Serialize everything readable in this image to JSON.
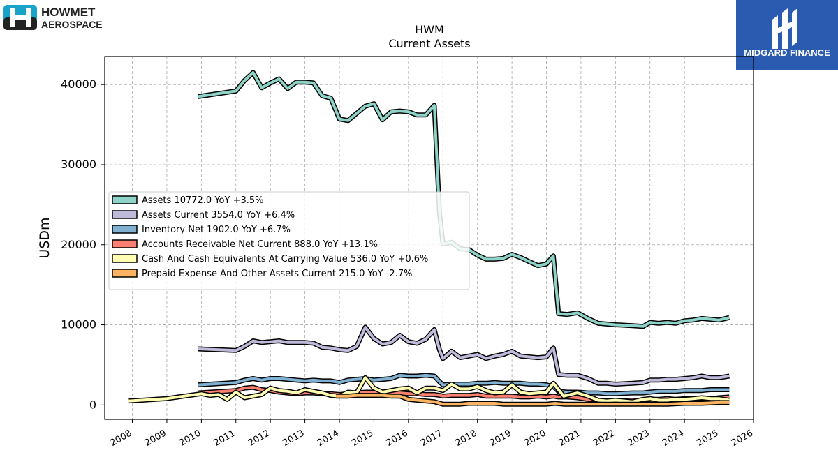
{
  "brand": {
    "left_line1": "HOWMET",
    "left_line2": "AEROSPACE",
    "right_text": "MIDGARD FINANCE"
  },
  "colors": {
    "assets": "#8dd3c7",
    "assets_current": "#bebada",
    "inventory": "#80b1d3",
    "receivable": "#fb8072",
    "cash": "#ffffb3",
    "prepaid": "#fdb462",
    "brand_blue": "#2a5bb0",
    "logo_teal": "#1aa3c8"
  },
  "chart_data": {
    "type": "line",
    "title": "HWM",
    "subtitle": "Current  Assets",
    "xlabel": "",
    "ylabel": "USDm",
    "xlim": [
      2007.2,
      2026.0
    ],
    "ylim": [
      -1800,
      43500
    ],
    "x_ticks": [
      "2008",
      "2009",
      "2010",
      "2011",
      "2012",
      "2013",
      "2014",
      "2015",
      "2016",
      "2017",
      "2018",
      "2019",
      "2020",
      "2021",
      "2022",
      "2023",
      "2024",
      "2025",
      "2026"
    ],
    "y_ticks": [
      0,
      10000,
      20000,
      30000,
      40000
    ],
    "y_tick_labels": [
      "0",
      "10000",
      "20000",
      "30000",
      "40000"
    ],
    "grid": true,
    "legend_position": "center-left",
    "series": [
      {
        "name": "Assets  10772.0 YoY +3.5%",
        "color": "#8dd3c7",
        "x": [
          2009.9,
          2011.0,
          2011.25,
          2011.5,
          2011.75,
          2012.0,
          2012.25,
          2012.5,
          2012.75,
          2013.0,
          2013.25,
          2013.5,
          2013.75,
          2014.0,
          2014.25,
          2014.5,
          2014.75,
          2015.0,
          2015.25,
          2015.5,
          2015.75,
          2016.0,
          2016.25,
          2016.5,
          2016.75,
          2016.9,
          2017.0,
          2017.25,
          2017.5,
          2017.75,
          2018.0,
          2018.25,
          2018.5,
          2018.75,
          2019.0,
          2019.25,
          2019.5,
          2019.75,
          2020.0,
          2020.2,
          2020.35,
          2020.6,
          2020.9,
          2021.2,
          2021.5,
          2021.75,
          2022.0,
          2022.5,
          2022.8,
          2023.0,
          2023.25,
          2023.5,
          2023.75,
          2024.0,
          2024.25,
          2024.5,
          2024.75,
          2025.0,
          2025.3
        ],
        "values": [
          38500,
          39200,
          40500,
          41500,
          39600,
          40200,
          40700,
          39500,
          40300,
          40300,
          40200,
          38600,
          38300,
          35700,
          35500,
          36400,
          37300,
          37600,
          35600,
          36600,
          36700,
          36600,
          36200,
          36200,
          37400,
          24000,
          20100,
          20300,
          19500,
          19400,
          18700,
          18200,
          18200,
          18300,
          18800,
          18400,
          17900,
          17400,
          17600,
          18600,
          11400,
          11300,
          11500,
          10800,
          10200,
          10100,
          10000,
          9900,
          9800,
          10300,
          10200,
          10300,
          10200,
          10500,
          10600,
          10800,
          10700,
          10600,
          10900
        ]
      },
      {
        "name": "Assets Current  3554.0 YoY +6.4%",
        "color": "#bebada",
        "x": [
          2009.9,
          2011.0,
          2011.25,
          2011.5,
          2011.75,
          2012.0,
          2012.25,
          2012.5,
          2012.75,
          2013.0,
          2013.25,
          2013.5,
          2013.75,
          2014.0,
          2014.25,
          2014.5,
          2014.75,
          2015.0,
          2015.25,
          2015.5,
          2015.75,
          2016.0,
          2016.25,
          2016.5,
          2016.75,
          2016.9,
          2017.0,
          2017.25,
          2017.5,
          2017.75,
          2018.0,
          2018.25,
          2018.5,
          2018.75,
          2019.0,
          2019.25,
          2019.5,
          2019.75,
          2020.0,
          2020.2,
          2020.35,
          2020.6,
          2020.9,
          2021.2,
          2021.5,
          2021.75,
          2022.0,
          2022.5,
          2022.8,
          2023.0,
          2023.25,
          2023.5,
          2023.75,
          2024.0,
          2024.25,
          2024.5,
          2024.75,
          2025.0,
          2025.3
        ],
        "values": [
          7000,
          6800,
          7300,
          8000,
          7800,
          7900,
          8000,
          7800,
          7800,
          7800,
          7700,
          7200,
          7100,
          6900,
          6800,
          7300,
          9700,
          8300,
          7600,
          7800,
          8700,
          7900,
          7700,
          8200,
          9400,
          6900,
          5800,
          6700,
          5900,
          6100,
          6300,
          5800,
          6100,
          6300,
          6700,
          6100,
          6000,
          5900,
          6000,
          7100,
          3800,
          3700,
          3700,
          3300,
          2700,
          2700,
          2600,
          2700,
          2800,
          3100,
          3100,
          3200,
          3200,
          3300,
          3400,
          3600,
          3400,
          3400,
          3600
        ]
      },
      {
        "name": "Inventory Net  1902.0 YoY +6.7%",
        "color": "#80b1d3",
        "x": [
          2009.9,
          2011.0,
          2011.25,
          2011.5,
          2011.75,
          2012.0,
          2012.25,
          2012.5,
          2012.75,
          2013.0,
          2013.25,
          2013.5,
          2013.75,
          2014.0,
          2014.25,
          2014.5,
          2014.75,
          2015.0,
          2015.25,
          2015.5,
          2015.75,
          2016.0,
          2016.25,
          2016.5,
          2016.75,
          2016.9,
          2017.0,
          2017.25,
          2017.5,
          2017.75,
          2018.0,
          2018.25,
          2018.5,
          2018.75,
          2019.0,
          2019.25,
          2019.5,
          2019.75,
          2020.0,
          2020.2,
          2020.35,
          2020.6,
          2020.9,
          2021.2,
          2021.5,
          2021.75,
          2022.0,
          2022.5,
          2022.8,
          2023.0,
          2023.25,
          2023.5,
          2023.75,
          2024.0,
          2024.25,
          2024.5,
          2024.75,
          2025.0,
          2025.3
        ],
        "values": [
          2500,
          2800,
          3100,
          3300,
          3100,
          3300,
          3300,
          3200,
          3100,
          3000,
          3100,
          3000,
          3000,
          2800,
          3100,
          3200,
          3300,
          3100,
          3200,
          3300,
          3700,
          3600,
          3600,
          3700,
          3600,
          2900,
          2500,
          2600,
          2600,
          2600,
          2700,
          2700,
          2800,
          2700,
          2700,
          2700,
          2600,
          2600,
          2500,
          2300,
          1700,
          1600,
          1600,
          1500,
          1500,
          1400,
          1400,
          1500,
          1500,
          1600,
          1700,
          1700,
          1700,
          1800,
          1800,
          1800,
          1900,
          1900,
          1900
        ]
      },
      {
        "name": "Accounts Receivable Net Current  888.0 YoY +13.1%",
        "color": "#fb8072",
        "x": [
          2009.9,
          2011.0,
          2011.25,
          2011.5,
          2011.75,
          2012.0,
          2012.25,
          2012.5,
          2012.75,
          2013.0,
          2013.25,
          2013.5,
          2013.75,
          2014.0,
          2014.25,
          2014.5,
          2014.75,
          2015.0,
          2015.25,
          2015.5,
          2015.75,
          2016.0,
          2016.25,
          2016.5,
          2016.75,
          2016.9,
          2017.0,
          2017.25,
          2017.5,
          2017.75,
          2018.0,
          2018.25,
          2018.5,
          2018.75,
          2019.0,
          2019.25,
          2019.5,
          2019.75,
          2020.0,
          2020.2,
          2020.35,
          2020.6,
          2020.9,
          2021.2,
          2021.5,
          2021.75,
          2022.0,
          2022.5,
          2022.8,
          2023.0,
          2023.25,
          2023.5,
          2023.75,
          2024.0,
          2024.25,
          2024.5,
          2024.75,
          2025.0,
          2025.3
        ],
        "values": [
          1500,
          1800,
          2100,
          2200,
          1900,
          1800,
          1600,
          1500,
          1400,
          1500,
          1500,
          1400,
          1400,
          1300,
          1400,
          1500,
          1600,
          1600,
          1500,
          1600,
          1500,
          1400,
          1400,
          1300,
          1300,
          1200,
          1100,
          1200,
          1200,
          1200,
          1300,
          1100,
          1100,
          1100,
          1100,
          1000,
          1000,
          1100,
          1000,
          1100,
          1000,
          1000,
          900,
          700,
          600,
          600,
          600,
          600,
          600,
          700,
          700,
          800,
          700,
          800,
          800,
          800,
          800,
          900,
          1000
        ]
      },
      {
        "name": "Cash And Cash Equivalents At Carrying Value  536.0 YoY +0.6%",
        "color": "#ffffb3",
        "x": [
          2007.9,
          2009.0,
          2009.5,
          2010.0,
          2010.25,
          2010.5,
          2010.75,
          2011.0,
          2011.25,
          2011.5,
          2011.75,
          2012.0,
          2012.25,
          2012.5,
          2012.75,
          2013.0,
          2013.25,
          2013.5,
          2013.75,
          2014.0,
          2014.25,
          2014.5,
          2014.75,
          2015.0,
          2015.25,
          2015.5,
          2015.75,
          2016.0,
          2016.25,
          2016.5,
          2016.75,
          2017.0,
          2017.25,
          2017.5,
          2017.75,
          2018.0,
          2018.25,
          2018.5,
          2018.75,
          2019.0,
          2019.25,
          2019.5,
          2019.75,
          2020.0,
          2020.2,
          2020.5,
          2020.9,
          2021.2,
          2021.5,
          2021.75,
          2022.0,
          2022.5,
          2022.8,
          2023.0,
          2023.25,
          2023.5,
          2023.75,
          2024.0,
          2024.25,
          2024.5,
          2024.75,
          2025.0,
          2025.3
        ],
        "values": [
          500,
          800,
          1100,
          1400,
          1200,
          1300,
          700,
          1600,
          900,
          1100,
          1300,
          2100,
          1800,
          1700,
          1500,
          1900,
          1700,
          1500,
          1200,
          1100,
          1600,
          1500,
          3400,
          2100,
          1600,
          1800,
          2000,
          2100,
          1500,
          2100,
          2100,
          1800,
          2600,
          2000,
          2000,
          2300,
          1800,
          1500,
          1600,
          2500,
          1600,
          1400,
          1500,
          1600,
          2700,
          1100,
          1500,
          1100,
          600,
          500,
          600,
          400,
          700,
          800,
          600,
          600,
          700,
          700,
          800,
          900,
          800,
          800,
          600
        ]
      },
      {
        "name": "Prepaid Expense And Other Assets Current  215.0 YoY -2.7%",
        "color": "#fdb462",
        "x": [
          2013.9,
          2014.25,
          2014.5,
          2014.75,
          2015.0,
          2015.25,
          2015.5,
          2015.75,
          2016.0,
          2016.25,
          2016.5,
          2016.75,
          2017.0,
          2017.25,
          2017.5,
          2017.75,
          2018.0,
          2018.25,
          2018.5,
          2018.75,
          2019.0,
          2019.25,
          2019.5,
          2019.75,
          2020.0,
          2020.25,
          2020.5,
          2020.75,
          2021.0,
          2021.5,
          2022.0,
          2022.5,
          2023.0,
          2023.5,
          2024.0,
          2024.5,
          2025.0,
          2025.3
        ],
        "values": [
          1100,
          1100,
          1200,
          1200,
          1200,
          1200,
          1100,
          1100,
          700,
          600,
          500,
          400,
          100,
          100,
          100,
          200,
          200,
          200,
          200,
          100,
          100,
          100,
          100,
          100,
          100,
          200,
          100,
          100,
          100,
          100,
          100,
          100,
          100,
          100,
          200,
          200,
          300,
          300
        ]
      }
    ]
  }
}
